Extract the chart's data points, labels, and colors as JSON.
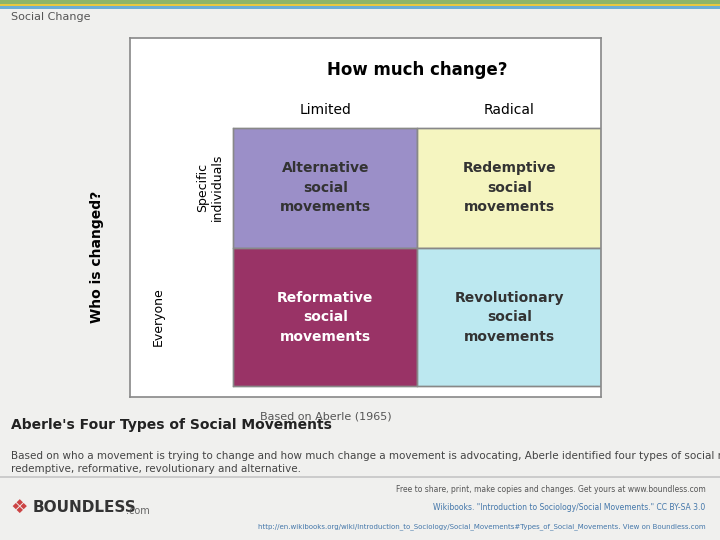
{
  "title": "Social Change",
  "top_bar_color": "#8db56a",
  "top_bar2_color": "#6baed6",
  "top_bar3_color": "#f5c842",
  "bg_color": "#f0f0ee",
  "diagram_bg": "#ffffff",
  "table_title": "How much change?",
  "col_labels": [
    "Limited",
    "Radical"
  ],
  "row_labels": [
    "Specific\nindividuals",
    "Everyone"
  ],
  "y_axis_label": "Who is changed?",
  "cells": [
    {
      "text": "Alternative\nsocial\nmovements",
      "color": "#9b8fc8",
      "row": 0,
      "col": 0
    },
    {
      "text": "Redemptive\nsocial\nmovements",
      "color": "#f5f5c0",
      "row": 0,
      "col": 1
    },
    {
      "text": "Reformative\nsocial\nmovements",
      "color": "#993366",
      "row": 1,
      "col": 0
    },
    {
      "text": "Revolutionary\nsocial\nmovements",
      "color": "#bce8f0",
      "row": 1,
      "col": 1
    }
  ],
  "footnote": "Based on Aberle (1965)",
  "caption_title": "Aberle's Four Types of Social Movements",
  "caption_body": "Based on who a movement is trying to change and how much change a movement is advocating, Aberle identified four types of social movements:\nredemptive, reformative, revolutionary and alternative.",
  "footer_right_1": "Free to share, print, make copies and changes. Get yours at www.boundless.com",
  "footer_right_2": "Wikibooks. \"Introduction to Sociology/Social Movements.\" CC BY-SA 3.0",
  "footer_right_3": "http://en.wikibooks.org/wiki/Introduction_to_Sociology/Social_Movements#Types_of_Social_Movements. View on Boundless.com"
}
